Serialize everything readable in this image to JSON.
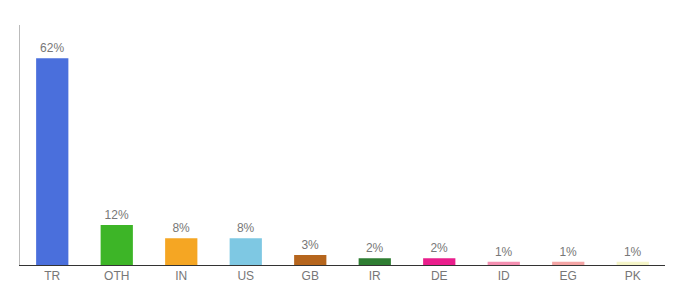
{
  "chart_data": {
    "type": "bar",
    "categories": [
      "TR",
      "OTH",
      "IN",
      "US",
      "GB",
      "IR",
      "DE",
      "ID",
      "EG",
      "PK"
    ],
    "values": [
      62,
      12,
      8,
      8,
      3,
      2,
      2,
      1,
      1,
      1
    ],
    "value_labels": [
      "62%",
      "12%",
      "8%",
      "8%",
      "3%",
      "2%",
      "2%",
      "1%",
      "1%",
      "1%"
    ],
    "colors": [
      "#4a6fdc",
      "#3db527",
      "#f5a623",
      "#7ec8e3",
      "#b5651d",
      "#2e7d32",
      "#e91e8c",
      "#f48fb1",
      "#f4a5a5",
      "#f5f5c8"
    ],
    "ylim": [
      0,
      72
    ],
    "data_labels": true,
    "tick_labels": "x",
    "grid": false
  }
}
